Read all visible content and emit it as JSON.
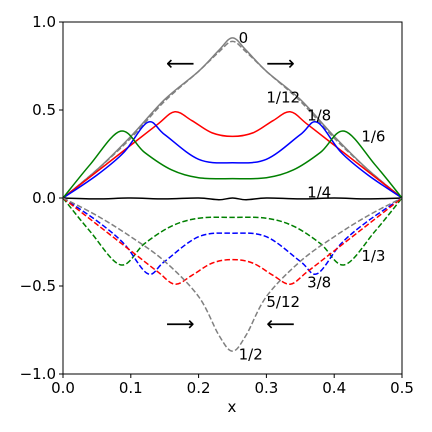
{
  "chart_data": {
    "type": "line",
    "xlabel": "x",
    "ylabel": "",
    "xlim": [
      0.0,
      0.5
    ],
    "ylim": [
      -1.0,
      1.0
    ],
    "xticks": [
      "0.0",
      "0.1",
      "0.2",
      "0.3",
      "0.4",
      "0.5"
    ],
    "yticks": [
      "−1.0",
      "−0.5",
      "0.0",
      "0.5",
      "1.0"
    ],
    "grid": false,
    "legend": "none",
    "colors": {
      "gray": "#808080",
      "red": "#ff0000",
      "blue": "#0000ff",
      "green": "#008000",
      "black": "#000000"
    },
    "series": [
      {
        "label": "0",
        "color": "gray",
        "dash": "solid",
        "points": [
          [
            0.0,
            0.0
          ],
          [
            0.05,
            0.16
          ],
          [
            0.1,
            0.35
          ],
          [
            0.15,
            0.56
          ],
          [
            0.2,
            0.72
          ],
          [
            0.23,
            0.84
          ],
          [
            0.25,
            0.91
          ],
          [
            0.27,
            0.84
          ],
          [
            0.3,
            0.72
          ],
          [
            0.35,
            0.56
          ],
          [
            0.4,
            0.35
          ],
          [
            0.45,
            0.16
          ],
          [
            0.5,
            0.0
          ]
        ]
      },
      {
        "label": "1/12",
        "color": "gray",
        "dash": "dashed",
        "points": [
          [
            0.0,
            0.0
          ],
          [
            0.05,
            0.16
          ],
          [
            0.1,
            0.34
          ],
          [
            0.15,
            0.55
          ],
          [
            0.2,
            0.72
          ],
          [
            0.23,
            0.83
          ],
          [
            0.25,
            0.89
          ],
          [
            0.27,
            0.83
          ],
          [
            0.3,
            0.72
          ],
          [
            0.35,
            0.55
          ],
          [
            0.4,
            0.34
          ],
          [
            0.45,
            0.16
          ],
          [
            0.5,
            0.0
          ]
        ]
      },
      {
        "label": "1/12",
        "color": "red",
        "dash": "solid",
        "points": [
          [
            0.0,
            0.0
          ],
          [
            0.05,
            0.15
          ],
          [
            0.1,
            0.3
          ],
          [
            0.14,
            0.42
          ],
          [
            0.165,
            0.49
          ],
          [
            0.19,
            0.44
          ],
          [
            0.22,
            0.37
          ],
          [
            0.25,
            0.35
          ],
          [
            0.28,
            0.37
          ],
          [
            0.31,
            0.44
          ],
          [
            0.335,
            0.49
          ],
          [
            0.36,
            0.42
          ],
          [
            0.4,
            0.3
          ],
          [
            0.45,
            0.15
          ],
          [
            0.5,
            0.0
          ]
        ]
      },
      {
        "label": "1/8",
        "color": "blue",
        "dash": "solid",
        "points": [
          [
            0.0,
            0.0
          ],
          [
            0.05,
            0.13
          ],
          [
            0.09,
            0.26
          ],
          [
            0.125,
            0.43
          ],
          [
            0.15,
            0.36
          ],
          [
            0.2,
            0.22
          ],
          [
            0.25,
            0.2
          ],
          [
            0.3,
            0.22
          ],
          [
            0.35,
            0.36
          ],
          [
            0.375,
            0.43
          ],
          [
            0.41,
            0.26
          ],
          [
            0.45,
            0.13
          ],
          [
            0.5,
            0.0
          ]
        ]
      },
      {
        "label": "1/6",
        "color": "green",
        "dash": "solid",
        "points": [
          [
            0.0,
            0.0
          ],
          [
            0.04,
            0.19
          ],
          [
            0.085,
            0.38
          ],
          [
            0.12,
            0.26
          ],
          [
            0.16,
            0.16
          ],
          [
            0.2,
            0.115
          ],
          [
            0.25,
            0.11
          ],
          [
            0.3,
            0.115
          ],
          [
            0.34,
            0.16
          ],
          [
            0.38,
            0.26
          ],
          [
            0.415,
            0.38
          ],
          [
            0.46,
            0.19
          ],
          [
            0.5,
            0.0
          ]
        ]
      },
      {
        "label": "1/4",
        "color": "black",
        "dash": "solid",
        "points": [
          [
            0.0,
            0.0
          ],
          [
            0.05,
            -0.005
          ],
          [
            0.1,
            0.0
          ],
          [
            0.15,
            -0.005
          ],
          [
            0.2,
            0.0
          ],
          [
            0.23,
            -0.01
          ],
          [
            0.25,
            0.0
          ],
          [
            0.27,
            -0.01
          ],
          [
            0.3,
            0.0
          ],
          [
            0.35,
            -0.005
          ],
          [
            0.4,
            0.0
          ],
          [
            0.45,
            -0.005
          ],
          [
            0.5,
            0.0
          ]
        ]
      },
      {
        "label": "1/3",
        "color": "green",
        "dash": "dashed",
        "points": [
          [
            0.0,
            0.0
          ],
          [
            0.04,
            -0.19
          ],
          [
            0.085,
            -0.38
          ],
          [
            0.12,
            -0.26
          ],
          [
            0.16,
            -0.16
          ],
          [
            0.2,
            -0.115
          ],
          [
            0.25,
            -0.11
          ],
          [
            0.3,
            -0.115
          ],
          [
            0.34,
            -0.16
          ],
          [
            0.38,
            -0.26
          ],
          [
            0.415,
            -0.38
          ],
          [
            0.46,
            -0.19
          ],
          [
            0.5,
            0.0
          ]
        ]
      },
      {
        "label": "3/8",
        "color": "blue",
        "dash": "dashed",
        "points": [
          [
            0.0,
            0.0
          ],
          [
            0.05,
            -0.13
          ],
          [
            0.09,
            -0.26
          ],
          [
            0.125,
            -0.43
          ],
          [
            0.15,
            -0.36
          ],
          [
            0.2,
            -0.22
          ],
          [
            0.25,
            -0.2
          ],
          [
            0.3,
            -0.22
          ],
          [
            0.35,
            -0.36
          ],
          [
            0.375,
            -0.43
          ],
          [
            0.41,
            -0.26
          ],
          [
            0.45,
            -0.13
          ],
          [
            0.5,
            0.0
          ]
        ]
      },
      {
        "label": "5/12",
        "color": "red",
        "dash": "dashed",
        "points": [
          [
            0.0,
            0.0
          ],
          [
            0.05,
            -0.15
          ],
          [
            0.1,
            -0.3
          ],
          [
            0.14,
            -0.42
          ],
          [
            0.165,
            -0.49
          ],
          [
            0.19,
            -0.44
          ],
          [
            0.22,
            -0.37
          ],
          [
            0.25,
            -0.35
          ],
          [
            0.28,
            -0.37
          ],
          [
            0.31,
            -0.44
          ],
          [
            0.335,
            -0.49
          ],
          [
            0.36,
            -0.42
          ],
          [
            0.4,
            -0.3
          ],
          [
            0.45,
            -0.15
          ],
          [
            0.5,
            0.0
          ]
        ]
      },
      {
        "label": "1/2",
        "color": "gray",
        "dash": "dashed",
        "points": [
          [
            0.0,
            0.0
          ],
          [
            0.05,
            -0.1
          ],
          [
            0.1,
            -0.22
          ],
          [
            0.15,
            -0.36
          ],
          [
            0.2,
            -0.56
          ],
          [
            0.23,
            -0.78
          ],
          [
            0.25,
            -0.87
          ],
          [
            0.27,
            -0.78
          ],
          [
            0.3,
            -0.56
          ],
          [
            0.35,
            -0.36
          ],
          [
            0.4,
            -0.22
          ],
          [
            0.45,
            -0.1
          ],
          [
            0.5,
            0.0
          ]
        ]
      }
    ],
    "annotations": [
      {
        "text": "0",
        "x": 0.259,
        "y": 0.91
      },
      {
        "text": "1/12",
        "x": 0.3,
        "y": 0.57
      },
      {
        "text": "1/8",
        "x": 0.36,
        "y": 0.47
      },
      {
        "text": "1/6",
        "x": 0.44,
        "y": 0.35
      },
      {
        "text": "1/4",
        "x": 0.36,
        "y": 0.03
      },
      {
        "text": "1/3",
        "x": 0.44,
        "y": -0.33
      },
      {
        "text": "3/8",
        "x": 0.36,
        "y": -0.48
      },
      {
        "text": "5/12",
        "x": 0.3,
        "y": -0.59
      },
      {
        "text": "1/2",
        "x": 0.259,
        "y": -0.89
      },
      {
        "text": "⟵",
        "x": 0.173,
        "y": 0.76
      },
      {
        "text": "⟶",
        "x": 0.321,
        "y": 0.76
      },
      {
        "text": "⟶",
        "x": 0.173,
        "y": -0.72
      },
      {
        "text": "⟵",
        "x": 0.321,
        "y": -0.72
      }
    ]
  }
}
